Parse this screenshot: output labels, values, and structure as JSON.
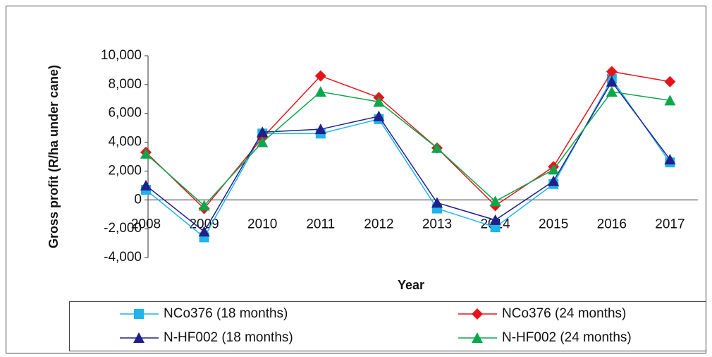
{
  "chart_data": {
    "type": "line",
    "y_label": "Gross profit (R/ha under cane)",
    "x_label": "Year",
    "categories": [
      "2008",
      "2009",
      "2010",
      "2011",
      "2012",
      "2013",
      "2014",
      "2015",
      "2016",
      "2017"
    ],
    "series": [
      {
        "name": "NCo376 (18 months)",
        "color": "#1fb4ec",
        "marker": "square",
        "values": [
          700,
          -2600,
          4600,
          4600,
          5600,
          -600,
          -1900,
          1100,
          8400,
          2600
        ]
      },
      {
        "name": "NCo376 (24 months)",
        "color": "#e5141b",
        "marker": "diamond",
        "values": [
          3300,
          -600,
          4300,
          8600,
          7100,
          3600,
          -400,
          2300,
          8900,
          8200
        ]
      },
      {
        "name": "N-HF002 (18 months)",
        "color": "#20208c",
        "marker": "triangle",
        "values": [
          1000,
          -2200,
          4700,
          4900,
          5800,
          -200,
          -1400,
          1300,
          8200,
          2800
        ]
      },
      {
        "name": "N-HF002 (24 months)",
        "color": "#0ca64c",
        "marker": "triangle",
        "values": [
          3200,
          -400,
          4000,
          7500,
          6800,
          3600,
          -100,
          2100,
          7500,
          6900
        ]
      }
    ],
    "ylim": [
      -4000,
      10000
    ],
    "yticks": [
      {
        "value": -4000,
        "label": "-4,000"
      },
      {
        "value": -2000,
        "label": "-2,000"
      },
      0,
      {
        "value": 2000,
        "label": "2,000"
      },
      {
        "value": 4000,
        "label": "4,000"
      },
      {
        "value": 6000,
        "label": "6,000"
      },
      {
        "value": 8000,
        "label": "8,000"
      },
      {
        "value": 10000,
        "label": "10,000"
      }
    ],
    "legend": "bottom"
  }
}
